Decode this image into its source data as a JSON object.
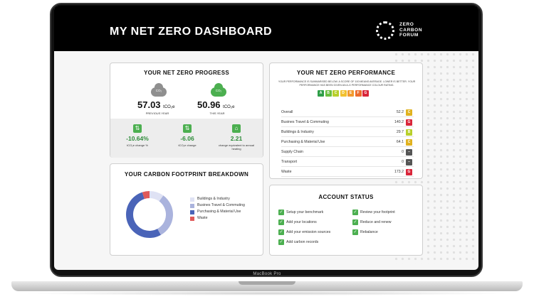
{
  "device": {
    "label": "MacBook Pro"
  },
  "header": {
    "title": "MY NET ZERO DASHBOARD",
    "logo_lines": [
      "ZERO",
      "CARBON",
      "FORUM"
    ]
  },
  "progress": {
    "title": "YOUR NET ZERO PROGRESS",
    "co2_label": "CO₂",
    "previous": {
      "value": "57.03",
      "unit": "tCO₂e",
      "caption": "PREVIOUS YEAR"
    },
    "current": {
      "value": "50.96",
      "unit": "tCO₂e",
      "caption": "THIS YEAR"
    },
    "stats": [
      {
        "value": "-10.64%",
        "caption": "tCO₂e change %",
        "icon": "arrows-updown-icon"
      },
      {
        "value": "-6.06",
        "caption": "tCO₂e change",
        "icon": "arrows-updown-icon"
      },
      {
        "value": "2.21",
        "caption": "change equivalent to annual heating",
        "icon": "home-icon"
      }
    ]
  },
  "performance": {
    "title": "YOUR NET ZERO PERFORMANCE",
    "description": "YOUR PERFORMANCE IS SUMMARISED BELOW. A SCORE OF 100 MEANS AVERAGE. LOWER IS BETTER. YOUR PERFORMANCE HAS BEEN GIVEN AN A-G PERFORMANCE COLOUR RATING.",
    "grades": [
      {
        "letter": "A",
        "color": "#2e9e48"
      },
      {
        "letter": "B",
        "color": "#6abf3f"
      },
      {
        "letter": "C",
        "color": "#b8cf2b"
      },
      {
        "letter": "D",
        "color": "#f2c12e"
      },
      {
        "letter": "E",
        "color": "#f29a2e"
      },
      {
        "letter": "F",
        "color": "#ec6b2c"
      },
      {
        "letter": "G",
        "color": "#d9263a"
      }
    ],
    "rows": [
      {
        "label": "Overall",
        "value": "52.2",
        "grade": "C",
        "color": "#e0b21f"
      },
      {
        "label": "Busines Travel & Commuting",
        "value": "140.2",
        "grade": "G",
        "color": "#d9263a"
      },
      {
        "label": "Buildings & Industry",
        "value": "29.7",
        "grade": "B",
        "color": "#b8cf2b"
      },
      {
        "label": "Purchasing & Material Use",
        "value": "64.1",
        "grade": "C",
        "color": "#e0b21f"
      },
      {
        "label": "Supply Chain",
        "value": "0",
        "grade": "–",
        "color": "#555555"
      },
      {
        "label": "Transport",
        "value": "0",
        "grade": "–",
        "color": "#555555"
      },
      {
        "label": "Waste",
        "value": "173.2",
        "grade": "G",
        "color": "#d9263a"
      }
    ]
  },
  "breakdown": {
    "title": "YOUR CARBON FOOTPRINT BREAKDOWN",
    "legend": [
      {
        "label": "Buildings & Industry",
        "color": "#dfe2f4",
        "share": 0.1
      },
      {
        "label": "Busines Travel & Commuting",
        "color": "#aab3dd",
        "share": 0.32
      },
      {
        "label": "Purchasing & Material Use",
        "color": "#4a64b8",
        "share": 0.53
      },
      {
        "label": "Waste",
        "color": "#e05a5a",
        "share": 0.05
      }
    ]
  },
  "account": {
    "title": "ACCOUNT STATUS",
    "left_items": [
      "Setup your benchmark",
      "Add your locations",
      "Add your emission sources",
      "Add carbon records"
    ],
    "right_items": [
      "Review your footprint",
      "Reduce and renew",
      "Rebalance"
    ]
  }
}
